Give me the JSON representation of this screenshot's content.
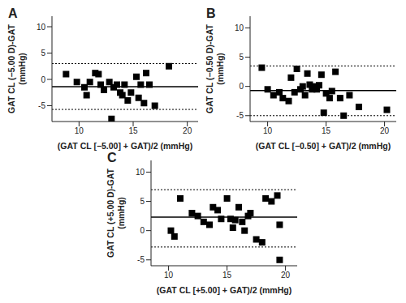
{
  "chart_data": [
    {
      "type": "scatter",
      "title": "A",
      "xlabel": "(GAT CL [−5.00] + GAT)/2 (mmHg)",
      "ylabel": [
        "GAT CL (−5.00 D)-GAT",
        "(mmHg)"
      ],
      "x": [
        8.8,
        9.8,
        10.5,
        10.7,
        11,
        11.5,
        11.8,
        12,
        12.3,
        12.8,
        13,
        13.2,
        13.5,
        13.8,
        14,
        14.2,
        14.5,
        14.8,
        15.3,
        15.5,
        15.7,
        16,
        16.2,
        16.5,
        17,
        18.3
      ],
      "values": [
        1,
        -0.5,
        -1.5,
        -3,
        -0.5,
        1.2,
        1,
        -1,
        -2,
        -0.5,
        -7.5,
        -1.5,
        -1,
        -2.5,
        -3,
        -1,
        -4,
        -2.5,
        0.5,
        -3.5,
        -1,
        -4.5,
        1.2,
        -1,
        -5,
        2.5
      ],
      "mean": -1.4,
      "upper_limit": 3,
      "lower_limit": -5.7,
      "xlim": [
        7.5,
        21
      ],
      "xticks": [
        10,
        15,
        20
      ],
      "ylim": [
        -8,
        12
      ],
      "yticks": [
        -5,
        0,
        5,
        10
      ],
      "color": "#000000",
      "marker": "square"
    },
    {
      "type": "scatter",
      "title": "B",
      "xlabel": "(GAT CL [−0.50] + GAT)/2 (mmHg)",
      "ylabel": [
        "GAT CL (−0.50 D)-GAT",
        "(mmHg)"
      ],
      "x": [
        9.5,
        10,
        10.5,
        11,
        11.3,
        11.8,
        12,
        12.3,
        12.5,
        12.8,
        13,
        13.2,
        13.4,
        13.6,
        13.8,
        14,
        14.2,
        14.4,
        14.6,
        14.8,
        15,
        15.3,
        15.5,
        15.8,
        16.2,
        16.5,
        17,
        17.8,
        20.2
      ],
      "values": [
        3.2,
        -0.5,
        -1.5,
        -1,
        -2,
        -2.5,
        1.5,
        -1,
        3,
        -0.5,
        0,
        -1.5,
        2.2,
        0.3,
        -0.5,
        0,
        -0.5,
        0.2,
        2,
        -4.5,
        -1.2,
        -2,
        -0.8,
        2.5,
        -2,
        -5,
        -1.5,
        -3.5,
        -4
      ],
      "mean": -0.7,
      "upper_limit": 3.5,
      "lower_limit": -5,
      "xlim": [
        8.5,
        21
      ],
      "xticks": [
        10,
        15,
        20
      ],
      "ylim": [
        -6,
        12
      ],
      "yticks": [
        -5,
        0,
        5,
        10
      ],
      "color": "#000000",
      "marker": "square"
    },
    {
      "type": "scatter",
      "title": "C",
      "xlabel": "(GAT CL [+5.00] + GAT)/2 (mmHg)",
      "ylabel": [
        "GAT CL (+5.00 D)-GAT",
        "(mmHg)"
      ],
      "x": [
        10.2,
        10.5,
        11,
        12,
        12.5,
        13,
        13.5,
        13.8,
        14.2,
        14.5,
        15,
        15.3,
        15.5,
        15.7,
        16,
        16.3,
        16.5,
        16.8,
        17,
        17.5,
        18,
        18.3,
        18.8,
        19.3,
        19.5,
        19.5
      ],
      "values": [
        0,
        -1,
        5.5,
        3,
        2.5,
        1.5,
        1,
        4,
        3.5,
        2,
        5.5,
        2,
        0.5,
        1.8,
        4,
        1.5,
        0,
        2.5,
        3,
        -1.5,
        -2,
        5.5,
        5,
        6,
        -5,
        1
      ],
      "mean": 2.3,
      "upper_limit": 7,
      "lower_limit": -2.8,
      "xlim": [
        8.5,
        21
      ],
      "xticks": [
        10,
        15,
        20
      ],
      "ylim": [
        -6,
        12
      ],
      "yticks": [
        -5,
        0,
        5,
        10
      ],
      "color": "#000000",
      "marker": "square"
    }
  ]
}
